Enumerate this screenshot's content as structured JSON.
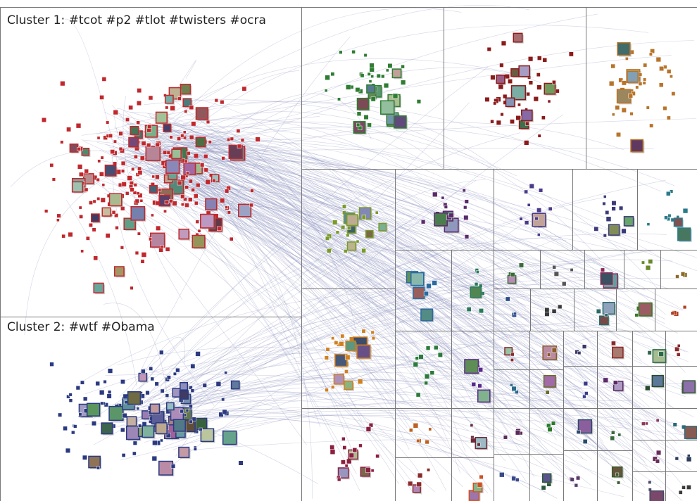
{
  "clusters": [
    {
      "label": "Cluster 1: #tcot #p2 #tlot #twisters #ocra"
    },
    {
      "label": "Cluster 2: #wtf #Obama"
    }
  ]
}
